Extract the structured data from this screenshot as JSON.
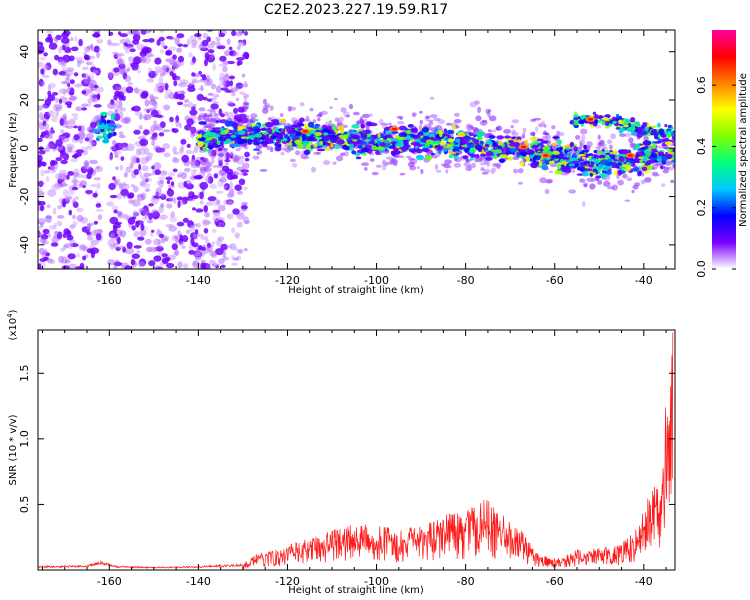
{
  "title": "C2E2.2023.227.19.59.R17",
  "chart_data": [
    {
      "type": "heatmap",
      "xlabel": "Height of straight line (km)",
      "ylabel": "Frequency (Hz)",
      "xlim": [
        -176,
        -33
      ],
      "ylim": [
        -50,
        49
      ],
      "xticks": [
        -160,
        -140,
        -120,
        -100,
        -80,
        -60,
        -40
      ],
      "yticks": [
        -40,
        -20,
        0,
        20,
        40
      ],
      "colorbar": {
        "label": "Normalized spectral amplitude",
        "range": [
          0,
          0.78
        ],
        "ticks": [
          "0.0",
          "0.2",
          "0.4",
          "0.6"
        ],
        "tick_values": [
          0,
          0.2,
          0.4,
          0.6
        ],
        "colormap": [
          "#ffffff",
          "#7b00ff",
          "#0000ff",
          "#00c8ff",
          "#00ff80",
          "#80ff00",
          "#ffff00",
          "#ff8000",
          "#ff0000",
          "#ff00a0"
        ]
      },
      "features": [
        {
          "kind": "noise-scatter",
          "x_range": [
            -176,
            -129
          ],
          "y_range": [
            -50,
            49
          ]
        },
        {
          "kind": "echo-band",
          "x": [
            -140,
            -120,
            -100,
            -80,
            -70,
            -60,
            -50,
            -40,
            -33
          ],
          "y": [
            4,
            6,
            3,
            2,
            0,
            -3,
            -7,
            -4,
            -2
          ]
        },
        {
          "kind": "upper-branch",
          "x": [
            -56,
            -50,
            -45,
            -40,
            -33
          ],
          "y": [
            12,
            12,
            11,
            8,
            6
          ]
        },
        {
          "kind": "blob",
          "x": -161,
          "y": 9
        }
      ]
    },
    {
      "type": "line",
      "xlabel": "Height of straight line (km)",
      "ylabel": "SNR (10 * v/v)",
      "y_multiplier": "(x10",
      "y_multiplier_exp": "4",
      "y_multiplier_close": ")",
      "xlim": [
        -176,
        -33
      ],
      "ylim": [
        0,
        1.83
      ],
      "xticks": [
        -160,
        -140,
        -120,
        -100,
        -80,
        -60,
        -40
      ],
      "yticks": [
        "0.5",
        "1.0",
        "1.5"
      ],
      "ytick_values": [
        0.5,
        1.0,
        1.5
      ],
      "color": "#ff0000",
      "envelope": {
        "x": [
          -176,
          -165,
          -162,
          -160,
          -158,
          -150,
          -140,
          -130,
          -127,
          -123,
          -120,
          -115,
          -110,
          -105,
          -100,
          -95,
          -90,
          -85,
          -80,
          -77,
          -75,
          -73,
          -70,
          -67,
          -64,
          -61,
          -58,
          -55,
          -50,
          -45,
          -42,
          -40,
          -38,
          -36,
          -35,
          -34,
          -33.5
        ],
        "y": [
          0.025,
          0.03,
          0.06,
          0.04,
          0.025,
          0.02,
          0.025,
          0.04,
          0.1,
          0.13,
          0.16,
          0.2,
          0.26,
          0.3,
          0.28,
          0.26,
          0.28,
          0.35,
          0.38,
          0.44,
          0.45,
          0.38,
          0.32,
          0.24,
          0.12,
          0.07,
          0.09,
          0.13,
          0.14,
          0.17,
          0.25,
          0.38,
          0.55,
          0.8,
          1.1,
          1.55,
          1.8
        ]
      }
    }
  ]
}
